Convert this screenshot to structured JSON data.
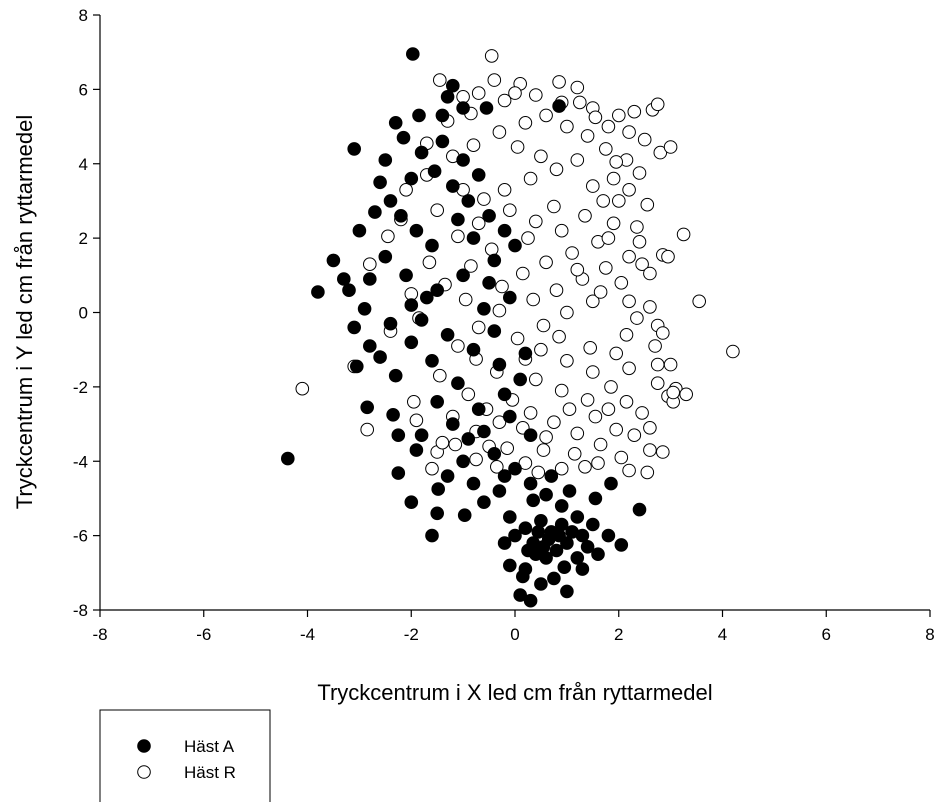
{
  "chart_data": {
    "type": "scatter",
    "xlabel": "Tryckcentrum i X led cm från ryttarmedel",
    "ylabel": "Tryckcentrum i Y led cm från ryttarmedel",
    "xlim": [
      -8,
      8
    ],
    "ylim": [
      -8,
      8
    ],
    "xticks": [
      -8,
      -6,
      -4,
      -2,
      0,
      2,
      4,
      6,
      8
    ],
    "yticks": [
      -8,
      -6,
      -4,
      -2,
      0,
      2,
      4,
      6,
      8
    ],
    "grid": false,
    "legend_position": "bottom-left",
    "series": [
      {
        "name": "Häst A",
        "marker": "filled-circle",
        "color": "#000000",
        "values": [
          [
            -1.97,
            6.95
          ],
          [
            -1.2,
            6.1
          ],
          [
            -1.0,
            5.5
          ],
          [
            -2.3,
            5.1
          ],
          [
            -1.4,
            5.3
          ],
          [
            -3.1,
            4.4
          ],
          [
            -2.5,
            4.1
          ],
          [
            -1.8,
            4.3
          ],
          [
            -3.0,
            2.2
          ],
          [
            -2.7,
            2.7
          ],
          [
            -3.5,
            1.4
          ],
          [
            -3.8,
            0.55
          ],
          [
            -3.2,
            0.6
          ],
          [
            -2.9,
            0.1
          ],
          [
            -3.1,
            -0.4
          ],
          [
            -2.8,
            -0.9
          ],
          [
            -2.3,
            -1.7
          ],
          [
            -3.05,
            -1.45
          ],
          [
            -2.85,
            -2.55
          ],
          [
            -2.35,
            -2.75
          ],
          [
            -2.25,
            -3.3
          ],
          [
            -1.9,
            -3.7
          ],
          [
            -4.38,
            -3.93
          ],
          [
            -2.25,
            -4.32
          ],
          [
            -2.0,
            -5.1
          ],
          [
            -1.48,
            -4.75
          ],
          [
            -1.6,
            -6.0
          ],
          [
            -1.5,
            -5.4
          ],
          [
            -0.97,
            -5.45
          ],
          [
            -0.6,
            -5.1
          ],
          [
            -0.3,
            -4.8
          ],
          [
            -1.85,
            5.3
          ],
          [
            -2.15,
            4.7
          ],
          [
            -1.55,
            3.8
          ],
          [
            -1.2,
            3.4
          ],
          [
            -0.9,
            3.0
          ],
          [
            -0.5,
            2.6
          ],
          [
            -0.2,
            2.2
          ],
          [
            0.0,
            1.8
          ],
          [
            -0.4,
            1.4
          ],
          [
            -1.0,
            1.0
          ],
          [
            -1.5,
            0.6
          ],
          [
            -2.0,
            0.2
          ],
          [
            -1.8,
            -0.2
          ],
          [
            -1.3,
            -0.6
          ],
          [
            -0.8,
            -1.0
          ],
          [
            -0.3,
            -1.4
          ],
          [
            0.1,
            -1.8
          ],
          [
            -0.2,
            -2.2
          ],
          [
            -0.7,
            -2.6
          ],
          [
            -1.2,
            -3.0
          ],
          [
            -0.9,
            -3.4
          ],
          [
            -0.4,
            -3.8
          ],
          [
            0.0,
            -4.2
          ],
          [
            0.3,
            -4.6
          ],
          [
            0.6,
            -4.9
          ],
          [
            0.9,
            -5.2
          ],
          [
            1.2,
            -5.5
          ],
          [
            1.5,
            -5.7
          ],
          [
            1.8,
            -6.0
          ],
          [
            2.05,
            -6.25
          ],
          [
            2.4,
            -5.3
          ],
          [
            1.85,
            -4.6
          ],
          [
            1.0,
            -7.5
          ],
          [
            0.3,
            -7.75
          ],
          [
            0.1,
            -7.6
          ],
          [
            0.5,
            -7.3
          ],
          [
            0.75,
            -7.15
          ],
          [
            -0.1,
            -6.8
          ],
          [
            0.2,
            -6.9
          ],
          [
            0.4,
            -6.5
          ],
          [
            0.6,
            -6.6
          ],
          [
            0.8,
            -6.4
          ],
          [
            1.0,
            -6.2
          ],
          [
            1.2,
            -6.6
          ],
          [
            1.4,
            -6.3
          ],
          [
            0.0,
            -6.0
          ],
          [
            0.2,
            -5.8
          ],
          [
            0.5,
            -5.6
          ],
          [
            0.7,
            -5.9
          ],
          [
            0.9,
            -5.7
          ],
          [
            1.1,
            -5.9
          ],
          [
            1.3,
            -6.0
          ],
          [
            0.35,
            -6.2
          ],
          [
            0.55,
            -6.3
          ],
          [
            0.45,
            -5.9
          ],
          [
            0.65,
            -6.1
          ],
          [
            0.85,
            -6.0
          ],
          [
            0.25,
            -6.4
          ],
          [
            -0.2,
            -6.2
          ],
          [
            -0.1,
            -5.5
          ],
          [
            1.6,
            -6.5
          ],
          [
            1.3,
            -6.9
          ],
          [
            0.15,
            -7.1
          ],
          [
            0.95,
            -6.85
          ],
          [
            -2.6,
            3.5
          ],
          [
            -2.4,
            3.0
          ],
          [
            -2.2,
            2.6
          ],
          [
            -1.9,
            2.2
          ],
          [
            -1.6,
            1.8
          ],
          [
            -2.5,
            1.5
          ],
          [
            -2.1,
            1.0
          ],
          [
            -1.7,
            0.4
          ],
          [
            -2.4,
            -0.3
          ],
          [
            -2.0,
            -0.8
          ],
          [
            -1.6,
            -1.3
          ],
          [
            -1.1,
            -1.9
          ],
          [
            -1.5,
            -2.4
          ],
          [
            -1.0,
            -4.0
          ],
          [
            -0.6,
            -3.2
          ],
          [
            -0.1,
            -2.8
          ],
          [
            0.3,
            -3.3
          ],
          [
            0.7,
            -4.4
          ],
          [
            -1.4,
            4.6
          ],
          [
            -1.0,
            4.1
          ],
          [
            -0.7,
            3.7
          ],
          [
            -1.1,
            2.5
          ],
          [
            -0.8,
            2.0
          ],
          [
            -0.5,
            0.8
          ],
          [
            -0.1,
            0.4
          ],
          [
            -0.6,
            0.1
          ],
          [
            -0.4,
            -0.5
          ],
          [
            0.2,
            -1.1
          ],
          [
            -2.8,
            0.9
          ],
          [
            -2.6,
            -1.2
          ],
          [
            -1.8,
            -3.3
          ],
          [
            -1.3,
            -4.4
          ],
          [
            -0.8,
            -4.6
          ],
          [
            -0.2,
            -4.4
          ],
          [
            0.35,
            -5.05
          ],
          [
            1.05,
            -4.8
          ],
          [
            1.55,
            -5.0
          ],
          [
            -3.3,
            0.9
          ],
          [
            -2.0,
            3.6
          ],
          [
            -1.3,
            5.8
          ],
          [
            -0.55,
            5.5
          ],
          [
            0.85,
            5.55
          ]
        ]
      },
      {
        "name": "Häst R",
        "marker": "open-circle",
        "color": "#000000",
        "values": [
          [
            -0.45,
            6.9
          ],
          [
            -1.45,
            6.25
          ],
          [
            -0.4,
            6.25
          ],
          [
            0.1,
            6.15
          ],
          [
            0.85,
            6.2
          ],
          [
            1.2,
            6.05
          ],
          [
            -1.0,
            5.8
          ],
          [
            -0.2,
            5.7
          ],
          [
            0.4,
            5.85
          ],
          [
            0.9,
            5.65
          ],
          [
            1.5,
            5.5
          ],
          [
            2.0,
            5.3
          ],
          [
            2.3,
            5.4
          ],
          [
            2.65,
            5.45
          ],
          [
            2.75,
            5.6
          ],
          [
            1.8,
            5.0
          ],
          [
            2.2,
            4.85
          ],
          [
            2.5,
            4.65
          ],
          [
            2.8,
            4.3
          ],
          [
            3.0,
            4.45
          ],
          [
            2.15,
            4.1
          ],
          [
            2.4,
            3.75
          ],
          [
            1.9,
            3.6
          ],
          [
            2.2,
            3.3
          ],
          [
            2.55,
            2.9
          ],
          [
            2.35,
            2.3
          ],
          [
            3.25,
            2.1
          ],
          [
            2.4,
            1.9
          ],
          [
            2.2,
            1.5
          ],
          [
            2.45,
            1.3
          ],
          [
            2.85,
            1.55
          ],
          [
            2.95,
            1.5
          ],
          [
            2.6,
            1.05
          ],
          [
            2.05,
            0.8
          ],
          [
            2.2,
            0.3
          ],
          [
            2.6,
            0.15
          ],
          [
            3.55,
            0.3
          ],
          [
            2.75,
            -0.35
          ],
          [
            2.85,
            -0.55
          ],
          [
            2.7,
            -0.9
          ],
          [
            2.15,
            -0.6
          ],
          [
            1.95,
            -1.1
          ],
          [
            2.75,
            -1.4
          ],
          [
            3.0,
            -1.4
          ],
          [
            2.75,
            -1.9
          ],
          [
            2.2,
            -1.5
          ],
          [
            2.15,
            -2.4
          ],
          [
            3.1,
            -2.05
          ],
          [
            2.95,
            -2.25
          ],
          [
            3.05,
            -2.4
          ],
          [
            3.05,
            -2.15
          ],
          [
            3.3,
            -2.2
          ],
          [
            4.2,
            -1.05
          ],
          [
            2.45,
            -2.7
          ],
          [
            2.6,
            -3.1
          ],
          [
            2.3,
            -3.3
          ],
          [
            2.6,
            -3.7
          ],
          [
            2.2,
            -4.25
          ],
          [
            2.55,
            -4.3
          ],
          [
            2.85,
            -3.75
          ],
          [
            2.05,
            -3.9
          ],
          [
            1.6,
            -4.05
          ],
          [
            1.35,
            -4.15
          ],
          [
            0.9,
            -4.2
          ],
          [
            0.55,
            -3.7
          ],
          [
            0.2,
            -4.05
          ],
          [
            -0.15,
            -3.65
          ],
          [
            -0.5,
            -3.6
          ],
          [
            -0.75,
            -3.95
          ],
          [
            -1.15,
            -3.55
          ],
          [
            -1.6,
            -4.2
          ],
          [
            -1.5,
            -3.75
          ],
          [
            -1.9,
            -2.9
          ],
          [
            -1.4,
            -3.5
          ],
          [
            -2.85,
            -3.15
          ],
          [
            -4.1,
            -2.05
          ],
          [
            -2.8,
            1.3
          ],
          [
            -3.1,
            -1.45
          ],
          [
            -2.4,
            -0.5
          ],
          [
            -2.0,
            0.5
          ],
          [
            -2.2,
            2.5
          ],
          [
            -2.45,
            2.05
          ],
          [
            -2.1,
            3.3
          ],
          [
            -1.7,
            3.7
          ],
          [
            -1.2,
            4.2
          ],
          [
            -0.8,
            4.5
          ],
          [
            -0.3,
            4.85
          ],
          [
            0.2,
            5.1
          ],
          [
            0.6,
            5.3
          ],
          [
            1.0,
            5.0
          ],
          [
            1.4,
            4.75
          ],
          [
            1.75,
            4.4
          ],
          [
            1.2,
            4.1
          ],
          [
            0.8,
            3.85
          ],
          [
            0.3,
            3.6
          ],
          [
            -0.2,
            3.3
          ],
          [
            -0.6,
            3.05
          ],
          [
            -0.1,
            2.75
          ],
          [
            0.4,
            2.45
          ],
          [
            0.9,
            2.2
          ],
          [
            1.35,
            2.6
          ],
          [
            1.7,
            3.0
          ],
          [
            1.9,
            2.4
          ],
          [
            1.6,
            1.9
          ],
          [
            1.1,
            1.6
          ],
          [
            0.6,
            1.35
          ],
          [
            0.15,
            1.05
          ],
          [
            -0.25,
            0.7
          ],
          [
            0.35,
            0.35
          ],
          [
            0.8,
            0.6
          ],
          [
            1.3,
            0.9
          ],
          [
            1.75,
            1.2
          ],
          [
            1.5,
            0.3
          ],
          [
            1.0,
            0.0
          ],
          [
            0.55,
            -0.35
          ],
          [
            0.05,
            -0.7
          ],
          [
            0.5,
            -1.0
          ],
          [
            1.0,
            -1.3
          ],
          [
            1.5,
            -1.6
          ],
          [
            1.85,
            -2.0
          ],
          [
            1.4,
            -2.35
          ],
          [
            0.9,
            -2.1
          ],
          [
            0.4,
            -1.8
          ],
          [
            -0.05,
            -2.35
          ],
          [
            0.3,
            -2.7
          ],
          [
            0.75,
            -2.95
          ],
          [
            1.2,
            -3.25
          ],
          [
            1.65,
            -3.55
          ],
          [
            1.95,
            -3.15
          ],
          [
            1.55,
            -2.8
          ],
          [
            1.05,
            -2.6
          ],
          [
            0.6,
            -3.35
          ],
          [
            0.15,
            -3.1
          ],
          [
            -0.3,
            -2.95
          ],
          [
            -0.75,
            -3.2
          ],
          [
            -0.55,
            -2.6
          ],
          [
            -0.9,
            -2.2
          ],
          [
            -1.2,
            -2.8
          ],
          [
            -0.35,
            -1.6
          ],
          [
            -0.75,
            -1.25
          ],
          [
            -1.1,
            -0.9
          ],
          [
            -0.7,
            -0.4
          ],
          [
            -0.3,
            0.05
          ],
          [
            -0.95,
            0.35
          ],
          [
            -1.35,
            0.75
          ],
          [
            -0.85,
            1.25
          ],
          [
            -0.45,
            1.7
          ],
          [
            -1.1,
            2.05
          ],
          [
            -0.7,
            2.4
          ],
          [
            -1.5,
            2.75
          ],
          [
            -1.0,
            3.3
          ],
          [
            -1.65,
            1.35
          ],
          [
            -1.85,
            -0.15
          ],
          [
            -1.45,
            -1.7
          ],
          [
            -1.95,
            -2.4
          ],
          [
            -1.7,
            4.55
          ],
          [
            -1.3,
            5.15
          ],
          [
            -0.85,
            5.35
          ],
          [
            0.05,
            4.45
          ],
          [
            0.5,
            4.2
          ],
          [
            1.5,
            3.4
          ],
          [
            1.95,
            4.05
          ],
          [
            0.75,
            2.85
          ],
          [
            0.25,
            2.0
          ],
          [
            1.2,
            1.15
          ],
          [
            1.65,
            0.55
          ],
          [
            0.85,
            -0.65
          ],
          [
            1.45,
            -0.95
          ],
          [
            0.2,
            -1.25
          ],
          [
            1.8,
            -2.6
          ],
          [
            0.45,
            -4.3
          ],
          [
            -0.35,
            -4.15
          ],
          [
            1.15,
            -3.8
          ],
          [
            2.35,
            -0.15
          ],
          [
            1.8,
            2.0
          ],
          [
            2.0,
            3.0
          ],
          [
            1.55,
            5.25
          ],
          [
            1.25,
            5.65
          ],
          [
            0.0,
            5.9
          ],
          [
            -0.7,
            5.9
          ]
        ]
      }
    ]
  }
}
